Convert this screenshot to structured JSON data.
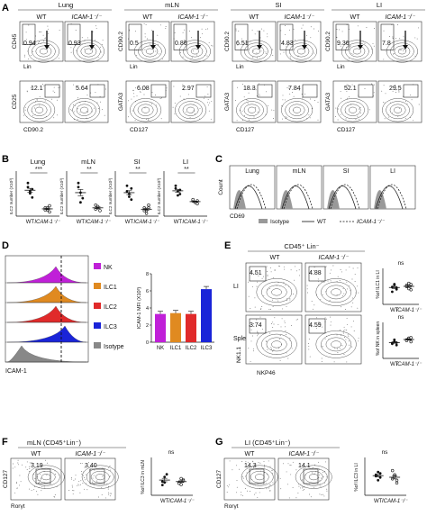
{
  "panelA": {
    "letter": "A",
    "tissues": [
      "Lung",
      "mLN",
      "SI",
      "LI"
    ],
    "groups": [
      "WT",
      "ICAM-1⁻/⁻"
    ],
    "row1_yaxis": [
      "CD45",
      "CD90.2",
      "CD90.2",
      "CD90.2"
    ],
    "row1_xaxis": "Lin",
    "row1_values": [
      [
        "0.94",
        "0.93"
      ],
      [
        "0.5",
        "0.86"
      ],
      [
        "6.51",
        "4.83"
      ],
      [
        "9.36",
        "7.8"
      ]
    ],
    "row2_yaxis": [
      "CD25",
      "GATA3",
      "GATA3",
      "GATA3"
    ],
    "row2_xaxis": [
      "CD90.2",
      "CD127",
      "CD127",
      "CD127"
    ],
    "row2_values": [
      [
        "12.1",
        "5.64"
      ],
      [
        "6.08",
        "2.97"
      ],
      [
        "18.3",
        "7.84"
      ],
      [
        "52.1",
        "29.5"
      ]
    ]
  },
  "panelB": {
    "letter": "B",
    "ylabel": "ILC2 number (X10³)",
    "charts": [
      {
        "title": "Lung",
        "sig": "***"
      },
      {
        "title": "mLN",
        "sig": "**"
      },
      {
        "title": "SI",
        "sig": "**"
      },
      {
        "title": "LI",
        "sig": "**"
      }
    ],
    "xcats": [
      "WT",
      "ICAM-1⁻/⁻"
    ]
  },
  "panelC": {
    "letter": "C",
    "titles": [
      "Lung",
      "mLN",
      "SI",
      "LI"
    ],
    "ylabel": "Count",
    "xlabel": "CD69",
    "legend": [
      "Isotype",
      "WT",
      "ICAM-1⁻/⁻"
    ]
  },
  "panelD": {
    "letter": "D",
    "hist_labels": [
      "NK",
      "ILC1",
      "ILC2",
      "ILC3",
      "Isotype"
    ],
    "xlabel": "ICAM-1",
    "ylabel": "ICAM-1 MFI (X10³)",
    "colors": [
      "#c020d8",
      "#e08a20",
      "#e02a2a",
      "#1a24d8",
      "#888888"
    ]
  },
  "panelE": {
    "letter": "E",
    "header": "CD45⁺ Lin⁻",
    "groups": [
      "WT",
      "ICAM-1⁻/⁻"
    ],
    "rows": [
      "LI",
      "Spleen"
    ],
    "values": [
      [
        "4.51",
        "4.88"
      ],
      [
        "3.74",
        "4.59"
      ]
    ],
    "yaxis": "NK1.1",
    "xaxis": "NKP46",
    "ylabels": [
      "%of ILC1 in LI",
      "%of NK in spleen"
    ],
    "ns": "ns"
  },
  "panelF": {
    "letter": "F",
    "header": "mLN (CD45⁺Lin⁻)",
    "groups": [
      "WT",
      "ICAM-1⁻/⁻"
    ],
    "values": [
      "3.19",
      "3.40"
    ],
    "yaxis": "CD127",
    "xaxis": "Rorγt",
    "ylabel": "%of ILC3 in mLN",
    "ns": "ns"
  },
  "panelG": {
    "letter": "G",
    "header": "LI (CD45⁺Lin⁻)",
    "groups": [
      "WT",
      "ICAM-1⁻/⁻"
    ],
    "values": [
      "14.3",
      "14.1"
    ],
    "yaxis": "CD127",
    "xaxis": "Rorγt",
    "ylabel": "%of ILC3 in LI",
    "ns": "ns"
  },
  "chart_data": [
    {
      "type": "scatter",
      "title": "Lung",
      "ylabel": "ILC2 number (X10³)",
      "ylim": [
        0,
        20
      ],
      "categories": [
        "WT",
        "ICAM-1⁻/⁻"
      ],
      "series": [
        {
          "values": [
            [
              16,
              11,
              9,
              14,
              12,
              13
            ],
            [
              4,
              3,
              2,
              3,
              4,
              5
            ]
          ]
        }
      ]
    },
    {
      "type": "scatter",
      "title": "mLN",
      "ylabel": "ILC2 number (X10³)",
      "ylim": [
        0,
        3
      ],
      "categories": [
        "WT",
        "ICAM-1⁻/⁻"
      ],
      "series": [
        {
          "values": [
            [
              2.1,
              1.7,
              1.3,
              2.4,
              1.0
            ],
            [
              0.8,
              0.6,
              0.4,
              0.5,
              0.7
            ]
          ]
        }
      ]
    },
    {
      "type": "scatter",
      "title": "SI",
      "ylabel": "ILC2 number (X10³)",
      "ylim": [
        0,
        15
      ],
      "categories": [
        "WT",
        "ICAM-1⁻/⁻"
      ],
      "series": [
        {
          "values": [
            [
              11,
              8,
              6,
              9,
              7,
              10
            ],
            [
              3,
              2,
              4,
              2,
              1,
              3
            ]
          ]
        }
      ]
    },
    {
      "type": "scatter",
      "title": "LI",
      "ylabel": "ILC2 number (X10³)",
      "ylim": [
        0,
        30
      ],
      "categories": [
        "WT",
        "ICAM-1⁻/⁻"
      ],
      "series": [
        {
          "values": [
            [
              22,
              18,
              16,
              20,
              15,
              19
            ],
            [
              11,
              10,
              9,
              12,
              10,
              11
            ]
          ]
        }
      ]
    },
    {
      "type": "bar",
      "ylabel": "ICAM-1 MFI (X10³)",
      "ylim": [
        0,
        8
      ],
      "categories": [
        "NK",
        "ILC1",
        "ILC2",
        "ILC3"
      ],
      "values": [
        3.3,
        3.4,
        3.3,
        6.2
      ]
    },
    {
      "type": "scatter",
      "ylabel": "%of ILC1 in LI",
      "ylim": [
        0,
        8
      ],
      "categories": [
        "WT",
        "ICAM-1⁻/⁻"
      ],
      "series": [
        {
          "values": [
            [
              4.3,
              5.0,
              3.7,
              3.1,
              4.8,
              4.1
            ],
            [
              4.7,
              5.2,
              3.6,
              4.4,
              3.9,
              4.9
            ]
          ]
        }
      ]
    },
    {
      "type": "scatter",
      "ylabel": "%of NK in spleen",
      "ylim": [
        0,
        8
      ],
      "categories": [
        "WT",
        "ICAM-1⁻/⁻"
      ],
      "series": [
        {
          "values": [
            [
              3.8,
              4.2,
              3.3,
              3.6,
              4.6,
              3.9
            ],
            [
              4.6,
              5.0,
              4.1,
              4.4,
              4.8,
              5.1
            ]
          ]
        }
      ]
    },
    {
      "type": "scatter",
      "ylabel": "%of ILC3 in mLN",
      "ylim": [
        0,
        8
      ],
      "categories": [
        "WT",
        "ICAM-1⁻/⁻"
      ],
      "series": [
        {
          "values": [
            [
              3.2,
              4.3,
              4.9,
              2.4,
              3.0
            ],
            [
              3.0,
              2.5,
              3.6,
              2.8,
              3.9,
              3.4
            ]
          ]
        }
      ]
    },
    {
      "type": "scatter",
      "ylabel": "%of ILC3 in LI",
      "ylim": [
        0,
        25
      ],
      "categories": [
        "WT",
        "ICAM-1⁻/⁻"
      ],
      "series": [
        {
          "values": [
            [
              14,
              17,
              13,
              15,
              11,
              16
            ],
            [
              12,
              15,
              9,
              18,
              14,
              11
            ]
          ]
        }
      ]
    }
  ]
}
